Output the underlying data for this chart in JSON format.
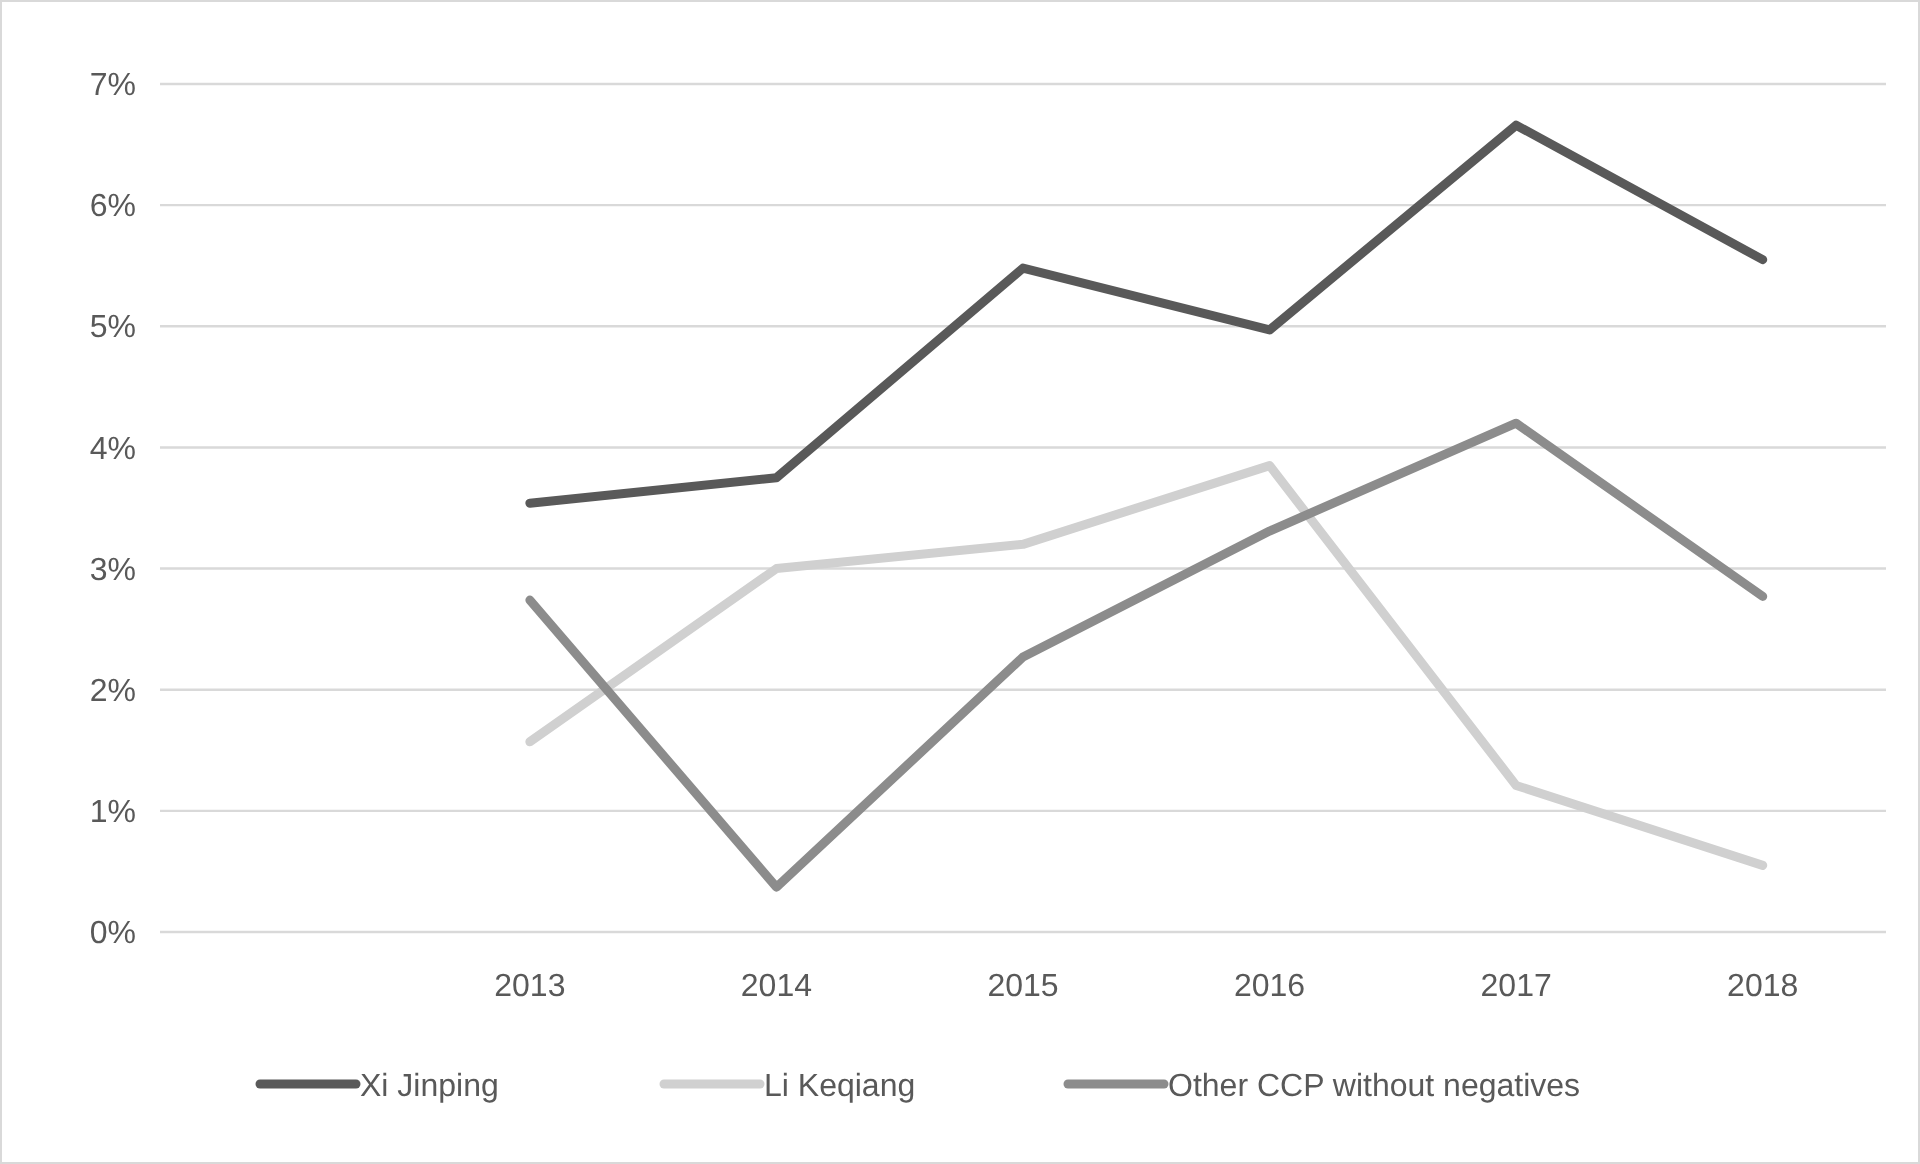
{
  "chart_data": {
    "type": "line",
    "categories": [
      null,
      "2013",
      "2014",
      "2015",
      "2016",
      "2017",
      "2018"
    ],
    "series": [
      {
        "name": "Xi Jinping",
        "color": "#595959",
        "values": [
          null,
          3.54,
          3.75,
          5.48,
          4.97,
          6.66,
          5.55
        ]
      },
      {
        "name": "Li Keqiang",
        "color": "#d0d0d0",
        "values": [
          null,
          1.57,
          3.0,
          3.2,
          3.85,
          1.21,
          0.55
        ]
      },
      {
        "name": "Other CCP without negatives",
        "color": "#8c8c8c",
        "values": [
          null,
          2.74,
          0.37,
          2.27,
          3.31,
          4.2,
          2.77
        ]
      }
    ],
    "ylim": [
      0,
      7
    ],
    "yticks": [
      {
        "value": 0,
        "label": "0%"
      },
      {
        "value": 1,
        "label": "1%"
      },
      {
        "value": 2,
        "label": "2%"
      },
      {
        "value": 3,
        "label": "3%"
      },
      {
        "value": 4,
        "label": "4%"
      },
      {
        "value": 5,
        "label": "5%"
      },
      {
        "value": 6,
        "label": "6%"
      },
      {
        "value": 7,
        "label": "7%"
      }
    ],
    "grid": "y",
    "legend": "bottom",
    "marker": "none",
    "line_style": "solid"
  }
}
